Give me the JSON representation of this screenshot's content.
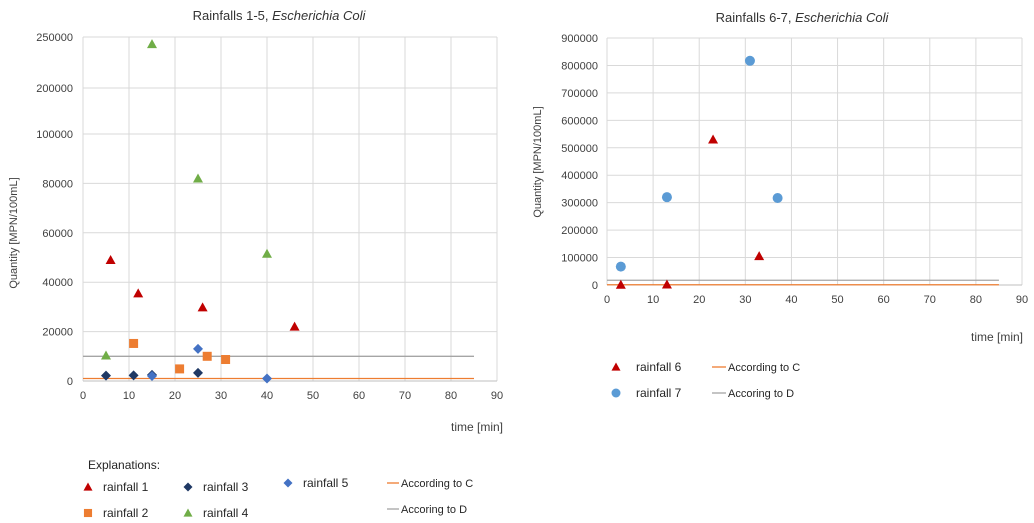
{
  "colors": {
    "C": "#ed7d31",
    "D": "#a5a5a5"
  },
  "chart_data": [
    {
      "type": "scatter",
      "title_prefix": "Rainfalls 1-5, ",
      "title_italic": "Escherichia Coli",
      "xlabel": "time [min]",
      "ylabel": "Quantity [MPN/100mL]",
      "xlim": [
        0,
        90
      ],
      "x_ticks": [
        "0",
        "10",
        "20",
        "30",
        "40",
        "50",
        "60",
        "70",
        "80",
        "90"
      ],
      "y_broken": true,
      "y_ticks_lower": [
        "0",
        "20000",
        "40000",
        "60000",
        "80000",
        "100000"
      ],
      "y_ticks_upper": [
        "200000",
        "250000"
      ],
      "legend_heading": "Explanations:",
      "series": [
        {
          "name": "rainfall 1",
          "marker": "triangle",
          "color": "#c00000",
          "points": [
            [
              6,
              49000
            ],
            [
              12,
              35500
            ],
            [
              26,
              29800
            ],
            [
              46,
              22000
            ]
          ]
        },
        {
          "name": "rainfall 2",
          "marker": "square",
          "color": "#ed7d31",
          "points": [
            [
              11,
              15200
            ],
            [
              21,
              4900
            ],
            [
              27,
              10000
            ],
            [
              31,
              8700
            ]
          ]
        },
        {
          "name": "rainfall 3",
          "marker": "diamond",
          "color": "#1f3864",
          "points": [
            [
              5,
              2200
            ],
            [
              11,
              2300
            ],
            [
              15,
              2500
            ],
            [
              25,
              3300
            ]
          ]
        },
        {
          "name": "rainfall 4",
          "marker": "triangle",
          "color": "#70ad47",
          "points": [
            [
              5,
              10300
            ],
            [
              15,
              243000
            ],
            [
              25,
              82000
            ],
            [
              40,
              51500
            ]
          ]
        },
        {
          "name": "rainfall 5",
          "marker": "diamond",
          "color": "#4472c4",
          "points": [
            [
              15,
              2000
            ],
            [
              25,
              13000
            ],
            [
              40,
              1000
            ]
          ]
        }
      ],
      "lines": [
        {
          "name": "According to C",
          "y": 1000,
          "color": "#ed7d31"
        },
        {
          "name": "Accoring to D",
          "y": 10000,
          "color": "#a5a5a5"
        }
      ]
    },
    {
      "type": "scatter",
      "title_prefix": "Rainfalls 6-7, ",
      "title_italic": "Escherichia Coli",
      "xlabel": "time [min]",
      "ylabel": "Quantity [MPN/100mL]",
      "xlim": [
        0,
        90
      ],
      "ylim": [
        0,
        900000
      ],
      "x_ticks": [
        "0",
        "10",
        "20",
        "30",
        "40",
        "50",
        "60",
        "70",
        "80",
        "90"
      ],
      "y_ticks": [
        "0",
        "100000",
        "200000",
        "300000",
        "400000",
        "500000",
        "600000",
        "700000",
        "800000",
        "900000"
      ],
      "series": [
        {
          "name": "rainfall 6",
          "marker": "triangle",
          "color": "#c00000",
          "points": [
            [
              3,
              1000
            ],
            [
              13,
              2000
            ],
            [
              23,
              530000
            ],
            [
              33,
              105000
            ]
          ]
        },
        {
          "name": "rainfall 7",
          "marker": "circle",
          "color": "#5b9bd5",
          "points": [
            [
              3,
              67000
            ],
            [
              13,
              320000
            ],
            [
              31,
              817000
            ],
            [
              37,
              317000
            ]
          ]
        }
      ],
      "lines": [
        {
          "name": "According to C",
          "y": 1000,
          "color": "#ed7d31"
        },
        {
          "name": "Accoring to D",
          "y": 10000,
          "color": "#a5a5a5"
        }
      ]
    }
  ]
}
